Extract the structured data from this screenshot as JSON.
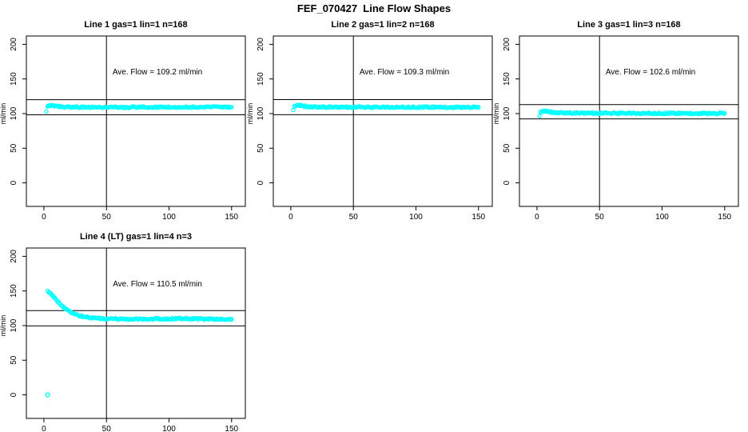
{
  "page_title": "FEF_070427  Line Flow Shapes",
  "colors": {
    "series": "#00ffff",
    "axis": "#000000",
    "background": "#ffffff",
    "text": "#000000"
  },
  "axes": {
    "xlim": [
      -14,
      161
    ],
    "ylim": [
      -34,
      212
    ],
    "xticks": [
      0,
      50,
      100,
      150
    ],
    "yticks": [
      0,
      50,
      100,
      150,
      200
    ],
    "ylabel": "ml/min",
    "vline_x": 50,
    "grid": false,
    "marker": "open-circle"
  },
  "chart_data": [
    {
      "type": "scatter",
      "title": "Line 1 gas=1 lin=1 n=168",
      "ave_flow": 109.2,
      "ave_flow_label": "Ave. Flow =  109.2  ml/min",
      "n": 168,
      "hlines": [
        120.1,
        98.3
      ],
      "points": [
        [
          2,
          104
        ],
        [
          3,
          110.5
        ],
        [
          4,
          112
        ],
        [
          6,
          112
        ],
        [
          9,
          111
        ],
        [
          13,
          110
        ],
        [
          18,
          109.6
        ],
        [
          25,
          109.4
        ],
        [
          35,
          109.2
        ],
        [
          50,
          109.3
        ],
        [
          65,
          109.0
        ],
        [
          80,
          109.3
        ],
        [
          95,
          109.1
        ],
        [
          110,
          109.3
        ],
        [
          125,
          109.1
        ],
        [
          138,
          109.4
        ],
        [
          150,
          109.2
        ]
      ],
      "extra_points": []
    },
    {
      "type": "scatter",
      "title": "Line 2 gas=1 lin=2 n=168",
      "ave_flow": 109.3,
      "ave_flow_label": "Ave. Flow =  109.3  ml/min",
      "n": 168,
      "hlines": [
        120.2,
        98.4
      ],
      "points": [
        [
          2,
          106
        ],
        [
          3,
          110.8
        ],
        [
          5,
          112
        ],
        [
          8,
          111.4
        ],
        [
          12,
          110.3
        ],
        [
          18,
          109.7
        ],
        [
          25,
          109.4
        ],
        [
          40,
          109.2
        ],
        [
          55,
          109.4
        ],
        [
          70,
          109.1
        ],
        [
          85,
          109.4
        ],
        [
          100,
          109.2
        ],
        [
          115,
          109.4
        ],
        [
          130,
          109.1
        ],
        [
          150,
          109.3
        ]
      ],
      "extra_points": []
    },
    {
      "type": "scatter",
      "title": "Line 3 gas=1 lin=3 n=168",
      "ave_flow": 102.6,
      "ave_flow_label": "Ave. Flow =  102.6  ml/min",
      "n": 168,
      "hlines": [
        112.9,
        92.3
      ],
      "points": [
        [
          2,
          97.5
        ],
        [
          3,
          102.5
        ],
        [
          5,
          103.8
        ],
        [
          8,
          103
        ],
        [
          12,
          102
        ],
        [
          18,
          101.3
        ],
        [
          25,
          100.9
        ],
        [
          40,
          100.6
        ],
        [
          55,
          100.7
        ],
        [
          70,
          100.4
        ],
        [
          85,
          100.6
        ],
        [
          100,
          100.3
        ],
        [
          115,
          100.5
        ],
        [
          130,
          100.3
        ],
        [
          150,
          100.5
        ]
      ],
      "extra_points": []
    },
    {
      "type": "scatter",
      "title": "Line 4 (LT) gas=1 lin=4 n=3",
      "ave_flow": 110.5,
      "ave_flow_label": "Ave. Flow =  110.5  ml/min",
      "n": 3,
      "hlines": [
        121.6,
        99.5
      ],
      "points": [
        [
          3,
          150
        ],
        [
          5,
          147
        ],
        [
          8,
          141
        ],
        [
          12,
          133
        ],
        [
          16,
          126
        ],
        [
          20,
          121
        ],
        [
          25,
          116.5
        ],
        [
          30,
          113.5
        ],
        [
          35,
          111.8
        ],
        [
          40,
          110.8
        ],
        [
          50,
          110
        ],
        [
          60,
          109.5
        ],
        [
          70,
          109.3
        ],
        [
          80,
          109.5
        ],
        [
          90,
          109.8
        ],
        [
          100,
          110
        ],
        [
          110,
          110
        ],
        [
          120,
          109.8
        ],
        [
          130,
          109.5
        ],
        [
          140,
          109.3
        ],
        [
          150,
          109.3
        ]
      ],
      "extra_points": [
        [
          3,
          0
        ]
      ]
    }
  ]
}
